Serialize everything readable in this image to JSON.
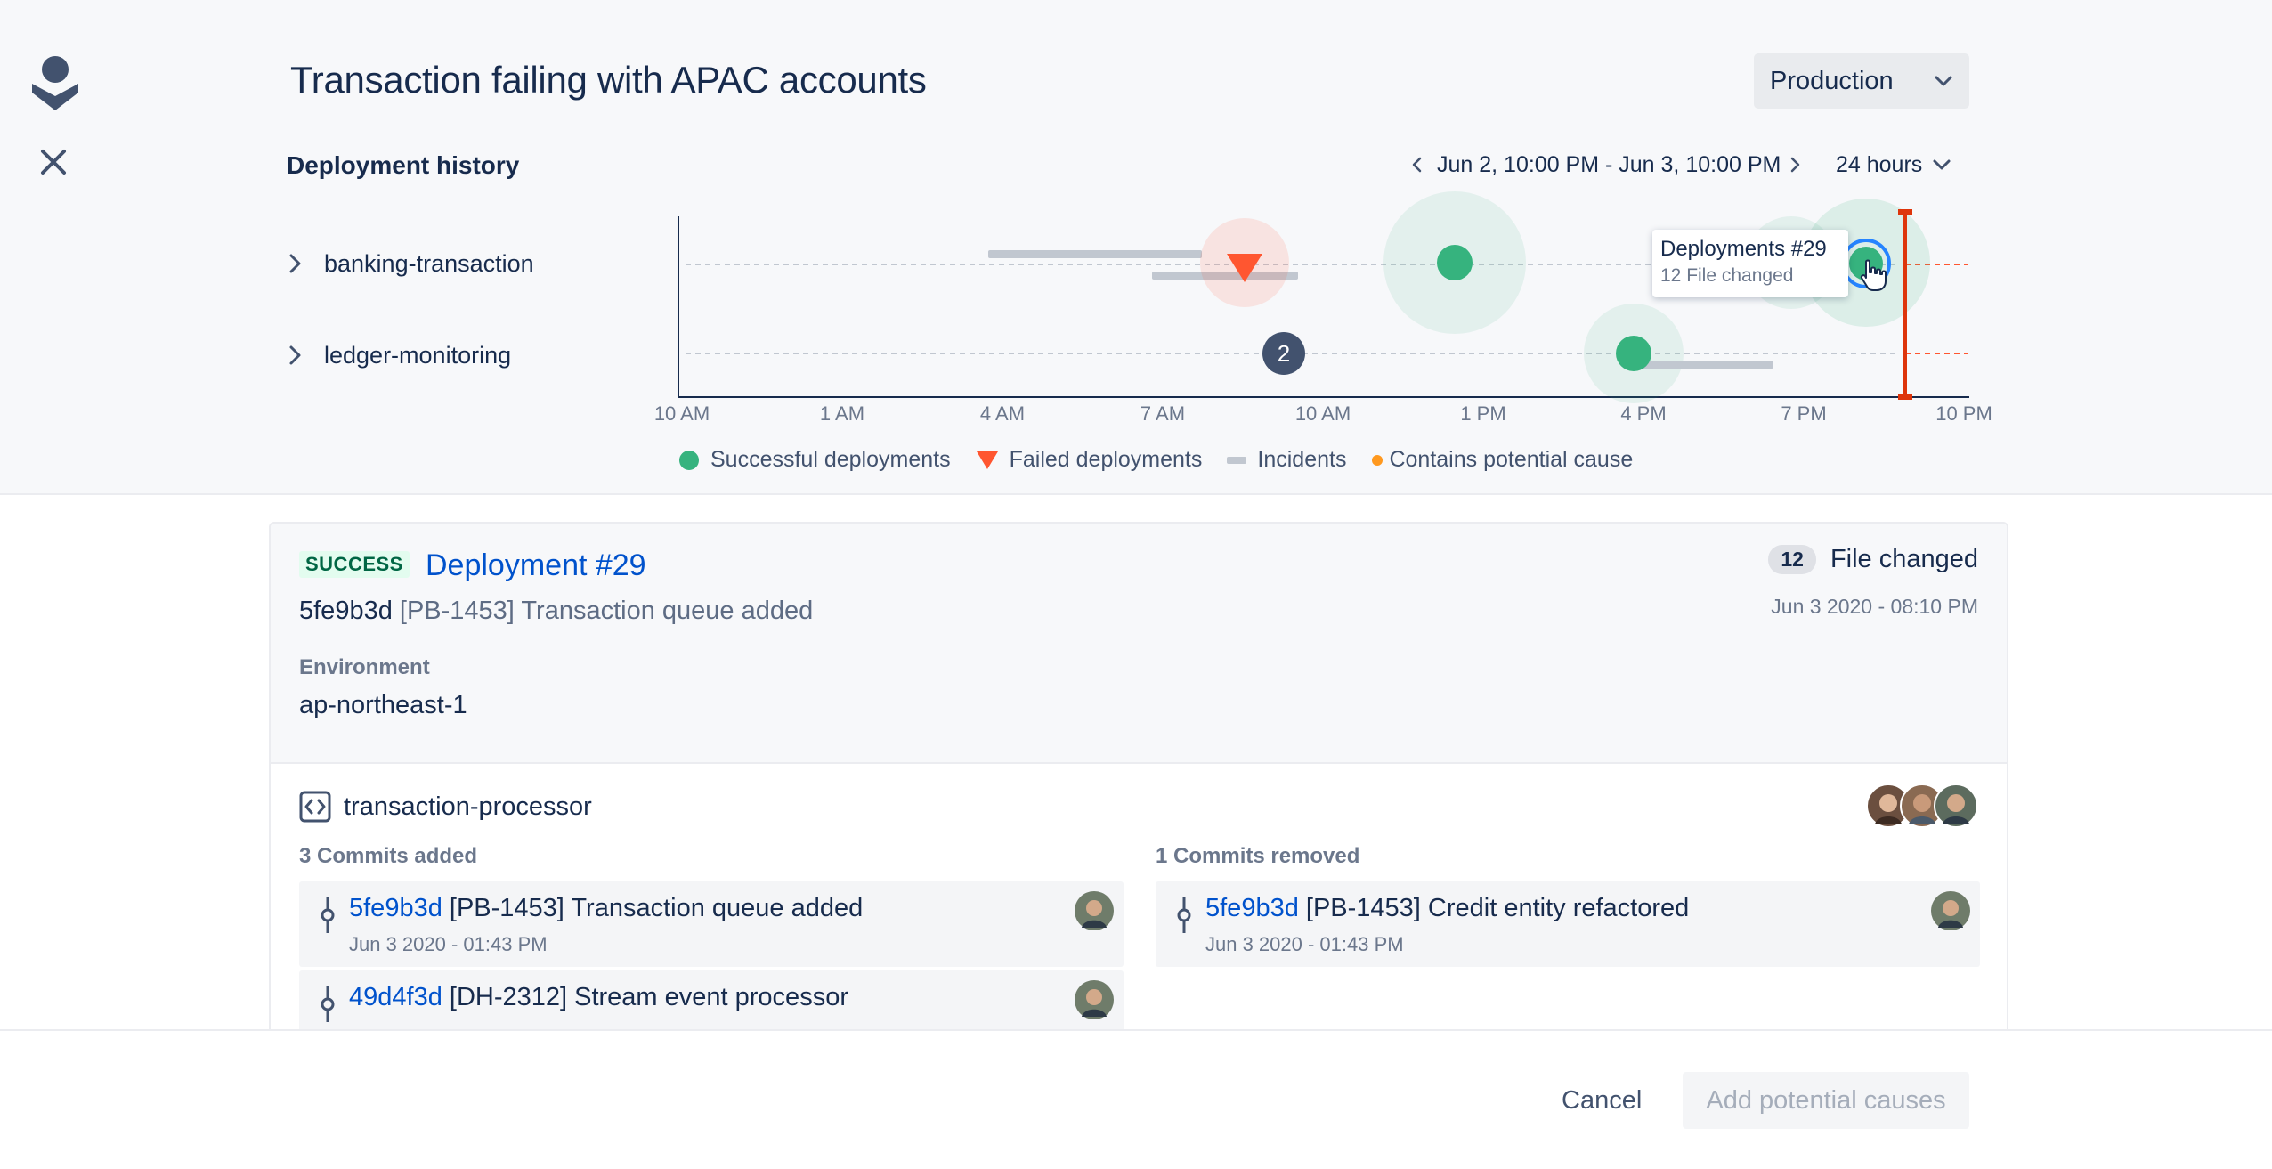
{
  "page": {
    "title": "Transaction failing with APAC accounts",
    "environment_select": "Production"
  },
  "deployment_history": {
    "title": "Deployment history",
    "date_range": "Jun 2, 10:00 PM - Jun 3, 10:00 PM",
    "period": "24 hours",
    "rows": [
      {
        "label": "banking-transaction"
      },
      {
        "label": "ledger-monitoring"
      }
    ],
    "x_ticks": [
      "10 AM",
      "1 AM",
      "4 AM",
      "7 AM",
      "10 AM",
      "1 PM",
      "4 PM",
      "7 PM",
      "10 PM"
    ],
    "group_badge": "2",
    "tooltip": {
      "title": "Deployments #29",
      "subtitle": "12 File changed"
    },
    "legend": {
      "success": "Successful deployments",
      "failed": "Failed deployments",
      "incidents": "Incidents",
      "cause": "Contains potential cause"
    },
    "colors": {
      "success": "#36B37E",
      "failed": "#FF5630",
      "incident": "#C1C7D0",
      "cause": "#FF991F",
      "marker": "#DE350B",
      "selected_ring": "#2684FF"
    }
  },
  "deployment": {
    "status": "SUCCESS",
    "title": "Deployment #29",
    "commit_hash": "5fe9b3d",
    "commit_message": "[PB-1453] Transaction queue added",
    "files_count": "12",
    "files_label": "File changed",
    "date": "Jun 3 2020 - 08:10 PM",
    "environment_label": "Environment",
    "environment_value": "ap-northeast-1"
  },
  "repository": {
    "name": "transaction-processor",
    "added_title": "3 Commits added",
    "removed_title": "1 Commits removed",
    "added": [
      {
        "hash": "5fe9b3d",
        "message": "[PB-1453] Transaction queue added",
        "date": "Jun 3 2020 - 01:43 PM"
      },
      {
        "hash": "49d4f3d",
        "message": "[DH-2312] Stream event processor",
        "date": ""
      }
    ],
    "removed": [
      {
        "hash": "5fe9b3d",
        "message": "[PB-1453] Credit entity refactored",
        "date": "Jun 3 2020 - 01:43 PM"
      }
    ]
  },
  "footer": {
    "cancel": "Cancel",
    "add": "Add potential causes"
  }
}
